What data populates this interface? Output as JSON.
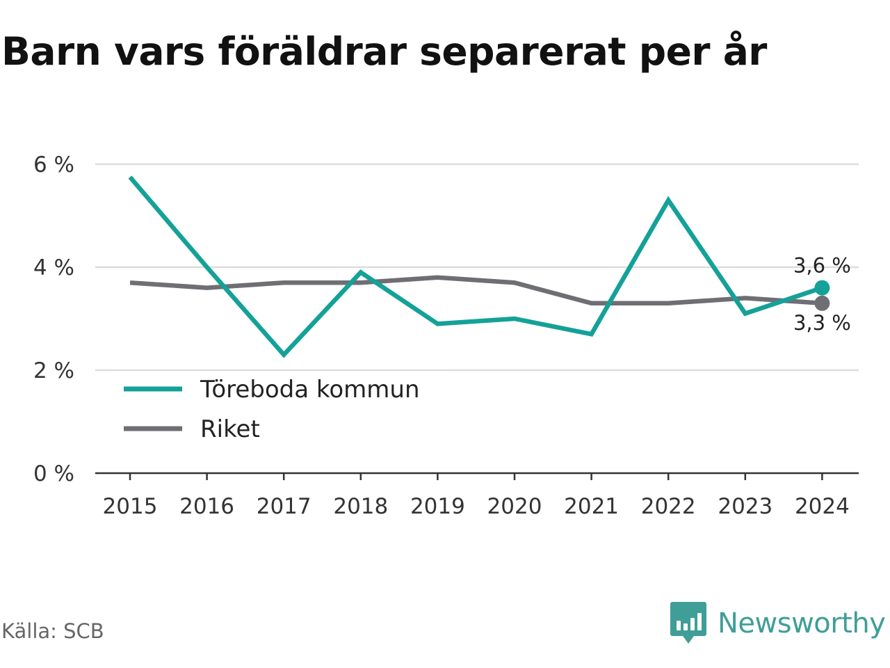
{
  "title": "Barn vars föräldrar separerat per år",
  "source": "Källa: SCB",
  "brand": {
    "name": "Newsworthy",
    "icon": "newsworthy-logo-icon",
    "color": "#3f9e97"
  },
  "chart_data": {
    "type": "line",
    "title": "Barn vars föräldrar separerat per år",
    "x": [
      "2015",
      "2016",
      "2017",
      "2018",
      "2019",
      "2020",
      "2021",
      "2022",
      "2023",
      "2024"
    ],
    "series": [
      {
        "name": "Töreboda kommun",
        "color": "#14a198",
        "values": [
          5.75,
          4.0,
          2.3,
          3.9,
          2.9,
          3.0,
          2.7,
          5.3,
          3.1,
          3.6
        ]
      },
      {
        "name": "Riket",
        "color": "#6f6e75",
        "values": [
          3.7,
          3.6,
          3.7,
          3.7,
          3.8,
          3.7,
          3.3,
          3.3,
          3.4,
          3.3
        ]
      }
    ],
    "y_ticks": [
      "0 %",
      "2 %",
      "4 %",
      "6 %"
    ],
    "y_tick_values": [
      0,
      2,
      4,
      6
    ],
    "ylim": [
      0,
      6
    ],
    "grid": true,
    "legend": {
      "placement": "bottom-left",
      "entries": [
        "Töreboda kommun",
        "Riket"
      ]
    },
    "end_labels": [
      "3,6 %",
      "3,3 %"
    ]
  }
}
